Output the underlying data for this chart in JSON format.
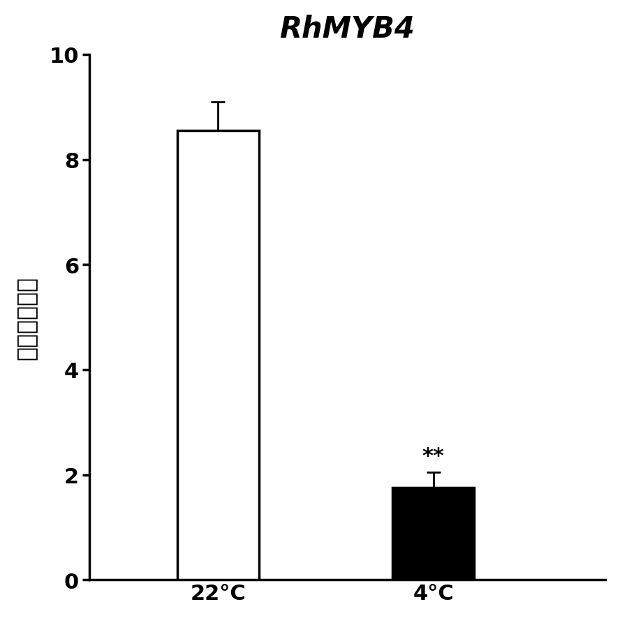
{
  "title": "RhMYB4",
  "ylabel": "相对表达水平",
  "categories": [
    "22°C",
    "4°C"
  ],
  "values": [
    8.55,
    1.75
  ],
  "errors": [
    0.55,
    0.3
  ],
  "bar_colors": [
    "#ffffff",
    "#000000"
  ],
  "bar_edgecolors": [
    "#000000",
    "#000000"
  ],
  "ylim": [
    0,
    10
  ],
  "yticks": [
    0,
    2,
    4,
    6,
    8,
    10
  ],
  "significance": [
    "",
    "**"
  ],
  "sig_fontsize": 22,
  "title_fontsize": 30,
  "ylabel_fontsize": 24,
  "tick_fontsize": 22,
  "xlabel_fontsize": 22,
  "bar_width": 0.38,
  "x_positions": [
    1,
    2
  ],
  "xlim": [
    0.4,
    2.8
  ],
  "figsize": [
    8.88,
    8.87
  ],
  "dpi": 100
}
